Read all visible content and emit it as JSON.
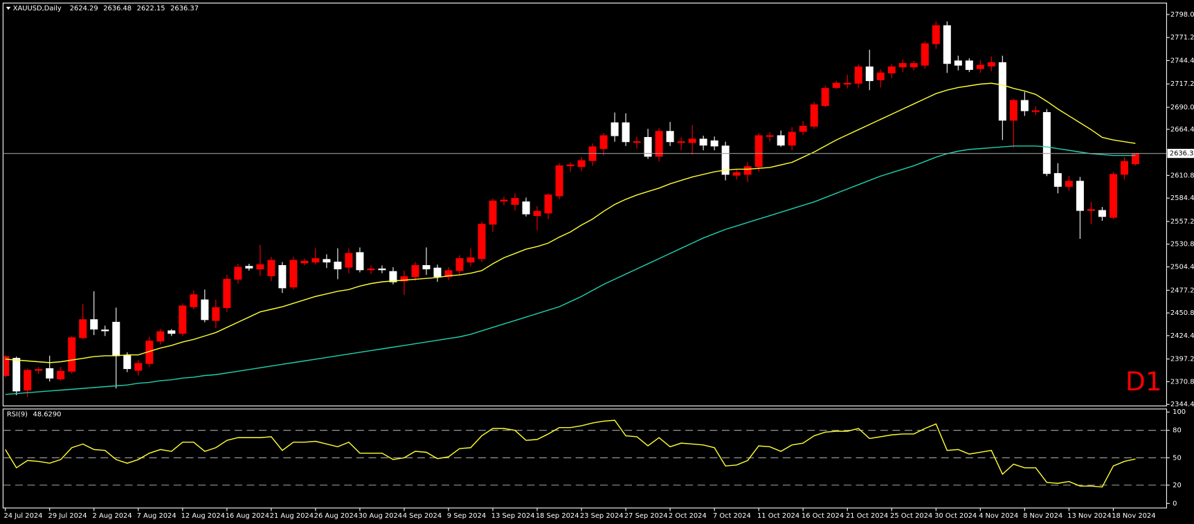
{
  "chart_data": [
    {
      "type": "candlestick",
      "title": "XAUUSD,Daily",
      "timeframe_label": "D1",
      "up_color": "#ff0000",
      "down_color": "#ffffff",
      "price_line_color": "#9a9a9a",
      "categories": [
        "24 Jul 2024",
        null,
        null,
        null,
        "29 Jul 2024",
        null,
        null,
        null,
        "2 Aug 2024",
        null,
        null,
        null,
        "7 Aug 2024",
        null,
        null,
        null,
        "12 Aug 2024",
        null,
        null,
        null,
        "16 Aug 2024",
        null,
        null,
        null,
        "21 Aug 2024",
        null,
        null,
        null,
        "26 Aug 2024",
        null,
        null,
        null,
        "30 Aug 2024",
        null,
        null,
        null,
        "4 Sep 2024",
        null,
        null,
        null,
        "9 Sep 2024",
        null,
        null,
        null,
        "13 Sep 2024",
        null,
        null,
        null,
        "18 Sep 2024",
        null,
        null,
        null,
        "23 Sep 2024",
        null,
        null,
        null,
        "27 Sep 2024",
        null,
        null,
        null,
        "2 Oct 2024",
        null,
        null,
        null,
        "7 Oct 2024",
        null,
        null,
        null,
        "11 Oct 2024",
        null,
        null,
        null,
        "16 Oct 2024",
        null,
        null,
        null,
        "21 Oct 2024",
        null,
        null,
        null,
        "25 Oct 2024",
        null,
        null,
        null,
        "30 Oct 2024",
        null,
        null,
        null,
        "4 Nov 2024",
        null,
        null,
        null,
        "8 Nov 2024",
        null,
        null,
        null,
        "13 Nov 2024",
        null,
        null,
        null,
        "18 Nov 2024",
        null,
        null
      ],
      "open": [
        2378,
        2398,
        2361,
        2384,
        2386,
        2374,
        2383,
        2422,
        2443,
        2431,
        2440,
        2401,
        2384,
        2392,
        2418,
        2430,
        2427,
        2458,
        2466,
        2442,
        2457,
        2490,
        2505,
        2502,
        2494,
        2506,
        2481,
        2509,
        2510,
        2513,
        2510,
        2504,
        2521,
        2501,
        2502,
        2499,
        2488,
        2493,
        2506,
        2503,
        2493,
        2500,
        2510,
        2514,
        2554,
        2581,
        2577,
        2580,
        2564,
        2567,
        2587,
        2622,
        2621,
        2628,
        2642,
        2672,
        2672,
        2650,
        2655,
        2633,
        2662,
        2650,
        2649,
        2653,
        2651,
        2645,
        2611,
        2612,
        2621,
        2657,
        2657,
        2646,
        2662,
        2668,
        2692,
        2713,
        2717,
        2718,
        2737,
        2722,
        2730,
        2737,
        2737,
        2739,
        2764,
        2785,
        2744,
        2744,
        2735,
        2738,
        2742,
        2675,
        2698,
        2686,
        2684,
        2613,
        2598,
        2604,
        2570,
        2570,
        2562,
        2612,
        2624.29
      ],
      "high": [
        2402,
        2400,
        2386,
        2388,
        2401,
        2388,
        2424,
        2461,
        2476,
        2436,
        2457,
        2405,
        2396,
        2423,
        2432,
        2432,
        2462,
        2477,
        2478,
        2466,
        2495,
        2508,
        2508,
        2530,
        2516,
        2510,
        2516,
        2514,
        2526,
        2519,
        2526,
        2526,
        2527,
        2506,
        2506,
        2504,
        2500,
        2510,
        2527,
        2507,
        2504,
        2518,
        2526,
        2557,
        2584,
        2586,
        2590,
        2585,
        2575,
        2590,
        2625,
        2626,
        2632,
        2648,
        2660,
        2684,
        2683,
        2656,
        2665,
        2666,
        2673,
        2655,
        2669,
        2657,
        2656,
        2650,
        2618,
        2626,
        2660,
        2661,
        2663,
        2667,
        2674,
        2696,
        2715,
        2721,
        2728,
        2740,
        2757,
        2734,
        2740,
        2746,
        2744,
        2767,
        2790,
        2790,
        2750,
        2747,
        2745,
        2749,
        2750,
        2700,
        2708,
        2691,
        2688,
        2625,
        2610,
        2609,
        2580,
        2574,
        2615,
        2632,
        2636.48
      ],
      "low": [
        2376,
        2355,
        2353,
        2380,
        2371,
        2372,
        2380,
        2420,
        2425,
        2424,
        2363,
        2382,
        2378,
        2388,
        2414,
        2424,
        2424,
        2455,
        2440,
        2433,
        2452,
        2485,
        2500,
        2494,
        2488,
        2474,
        2478,
        2506,
        2507,
        2503,
        2490,
        2497,
        2498,
        2496,
        2497,
        2484,
        2472,
        2488,
        2495,
        2487,
        2489,
        2495,
        2505,
        2510,
        2545,
        2576,
        2570,
        2563,
        2547,
        2560,
        2583,
        2615,
        2616,
        2622,
        2634,
        2650,
        2645,
        2642,
        2630,
        2627,
        2645,
        2640,
        2635,
        2640,
        2640,
        2605,
        2606,
        2603,
        2615,
        2650,
        2644,
        2640,
        2658,
        2665,
        2690,
        2711,
        2712,
        2713,
        2710,
        2713,
        2724,
        2731,
        2733,
        2735,
        2758,
        2730,
        2733,
        2731,
        2730,
        2732,
        2652,
        2643,
        2680,
        2681,
        2610,
        2590,
        2593,
        2537,
        2554,
        2558,
        2560,
        2606,
        2622.15
      ],
      "close": [
        2400,
        2360,
        2384,
        2385,
        2375,
        2383,
        2422,
        2443,
        2432,
        2430,
        2401,
        2386,
        2392,
        2418,
        2429,
        2427,
        2459,
        2472,
        2443,
        2457,
        2490,
        2504,
        2503,
        2507,
        2512,
        2480,
        2512,
        2511,
        2514,
        2510,
        2502,
        2520,
        2501,
        2502,
        2501,
        2487,
        2493,
        2506,
        2502,
        2493,
        2500,
        2514,
        2515,
        2554,
        2581,
        2582,
        2584,
        2566,
        2569,
        2588,
        2622,
        2623,
        2628,
        2644,
        2657,
        2657,
        2650,
        2650,
        2633,
        2662,
        2650,
        2650,
        2653,
        2646,
        2645,
        2612,
        2614,
        2621,
        2657,
        2657,
        2646,
        2661,
        2668,
        2693,
        2712,
        2718,
        2718,
        2737,
        2721,
        2730,
        2737,
        2741,
        2741,
        2764,
        2785,
        2741,
        2739,
        2734,
        2739,
        2742,
        2675,
        2698,
        2686,
        2686,
        2613,
        2598,
        2604,
        2570,
        2571,
        2563,
        2612,
        2627,
        2636.37
      ],
      "series": [
        {
          "color": "#ffff33",
          "values": [
            2397,
            2396,
            2395,
            2394,
            2393,
            2394,
            2396,
            2398,
            2400,
            2401,
            2401,
            2402,
            2402,
            2406,
            2410,
            2413,
            2417,
            2420,
            2424,
            2428,
            2434,
            2440,
            2446,
            2452,
            2455,
            2458,
            2462,
            2466,
            2470,
            2473,
            2476,
            2478,
            2482,
            2485,
            2487,
            2488,
            2489,
            2490,
            2491,
            2492,
            2494,
            2495,
            2497,
            2500,
            2508,
            2515,
            2520,
            2525,
            2528,
            2532,
            2539,
            2545,
            2553,
            2560,
            2569,
            2577,
            2583,
            2588,
            2592,
            2596,
            2601,
            2605,
            2609,
            2612,
            2615,
            2617,
            2618,
            2618,
            2619,
            2620,
            2623,
            2626,
            2632,
            2638,
            2645,
            2652,
            2658,
            2664,
            2670,
            2676,
            2682,
            2688,
            2694,
            2700,
            2706,
            2710,
            2713,
            2715,
            2717,
            2718,
            2716,
            2712,
            2709,
            2705,
            2697,
            2688,
            2680,
            2672,
            2664,
            2655,
            2652,
            2650,
            2648
          ]
        },
        {
          "color": "#20d0b0",
          "values": [
            2356,
            2357,
            2358,
            2359,
            2360,
            2361,
            2362,
            2363,
            2364,
            2365,
            2366,
            2367,
            2369,
            2370,
            2372,
            2373,
            2375,
            2376,
            2378,
            2379,
            2381,
            2383,
            2385,
            2387,
            2389,
            2391,
            2393,
            2395,
            2397,
            2399,
            2401,
            2403,
            2405,
            2407,
            2409,
            2411,
            2413,
            2415,
            2417,
            2419,
            2421,
            2423,
            2426,
            2430,
            2434,
            2438,
            2442,
            2446,
            2450,
            2454,
            2458,
            2464,
            2470,
            2477,
            2484,
            2490,
            2496,
            2502,
            2508,
            2514,
            2520,
            2526,
            2532,
            2538,
            2543,
            2548,
            2552,
            2556,
            2560,
            2564,
            2568,
            2572,
            2576,
            2580,
            2585,
            2590,
            2595,
            2600,
            2605,
            2610,
            2614,
            2618,
            2622,
            2627,
            2632,
            2636,
            2639,
            2641,
            2642,
            2643,
            2644,
            2645,
            2645,
            2645,
            2644,
            2642,
            2640,
            2638,
            2636,
            2635,
            2634,
            2634,
            2634
          ]
        }
      ],
      "ylim": [
        2342.6,
        2811.3
      ],
      "yticks": [
        {
          "value": 2798.0,
          "label": "2798.00"
        },
        {
          "value": 2771.2,
          "label": "2771.20"
        },
        {
          "value": 2744.4,
          "label": "2744.40"
        },
        {
          "value": 2717.2,
          "label": "2717.20"
        },
        {
          "value": 2690.0,
          "label": "2690.00"
        },
        {
          "value": 2664.4,
          "label": "2664.40"
        },
        {
          "value": 2610.8,
          "label": "2610.80"
        },
        {
          "value": 2584.4,
          "label": "2584.40"
        },
        {
          "value": 2557.2,
          "label": "2557.20"
        },
        {
          "value": 2530.8,
          "label": "2530.80"
        },
        {
          "value": 2504.4,
          "label": "2504.40"
        },
        {
          "value": 2477.2,
          "label": "2477.20"
        },
        {
          "value": 2450.8,
          "label": "2450.80"
        },
        {
          "value": 2424.4,
          "label": "2424.40"
        },
        {
          "value": 2397.2,
          "label": "2397.20"
        },
        {
          "value": 2370.8,
          "label": "2370.80"
        },
        {
          "value": 2344.4,
          "label": "2344.40"
        }
      ]
    },
    {
      "type": "line",
      "title": "RSI(9)",
      "last_value_label": "48.6290",
      "color": "#ffff33",
      "values": [
        59,
        39,
        47,
        46,
        44,
        48,
        61,
        65,
        59,
        58,
        48,
        44,
        48,
        55,
        59,
        57,
        67,
        67,
        57,
        61,
        69,
        72,
        72,
        72,
        73,
        58,
        67,
        67,
        68,
        65,
        62,
        67,
        55,
        55,
        55,
        48,
        50,
        57,
        56,
        49,
        51,
        60,
        61,
        74,
        82,
        82,
        80,
        69,
        70,
        76,
        83,
        83,
        85,
        88,
        90,
        91,
        74,
        73,
        63,
        72,
        62,
        66,
        65,
        64,
        61,
        41,
        42,
        47,
        63,
        62,
        57,
        64,
        66,
        74,
        78,
        79,
        79,
        82,
        71,
        73,
        75,
        76,
        76,
        82,
        87,
        58,
        59,
        54,
        56,
        58,
        32,
        43,
        39,
        39,
        23,
        22,
        24,
        19,
        19,
        18,
        41,
        46,
        48.629
      ],
      "ylim": [
        0,
        100
      ],
      "yticks": [
        0,
        20,
        50,
        80,
        100
      ],
      "levels": [
        20,
        50,
        80
      ]
    }
  ]
}
